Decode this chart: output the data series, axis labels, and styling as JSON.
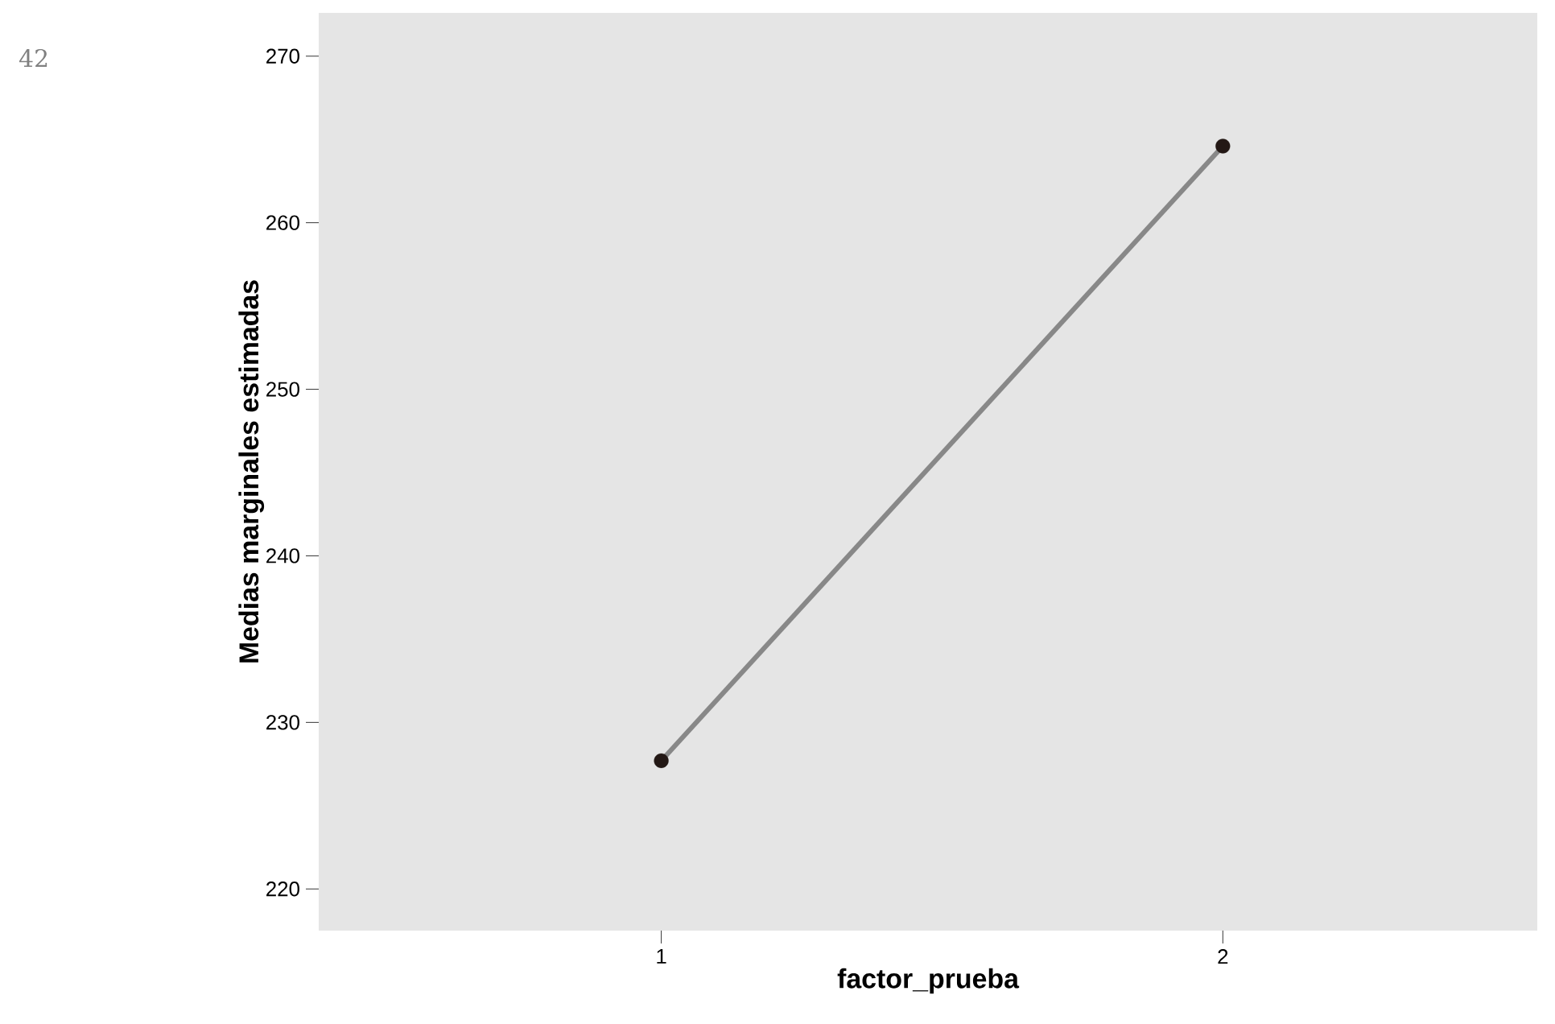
{
  "chart_data": {
    "type": "line",
    "xlabel": "factor_prueba",
    "ylabel": "Medias marginales estimadas",
    "categories": [
      "1",
      "2"
    ],
    "series": [
      {
        "color": "#888888",
        "values": [
          227.7,
          264.6
        ]
      }
    ],
    "marker": "circle",
    "ylim": [
      217.5,
      272.6
    ],
    "yticks": [
      220,
      230,
      240,
      250,
      260,
      270
    ],
    "annotations": [
      "42"
    ]
  }
}
